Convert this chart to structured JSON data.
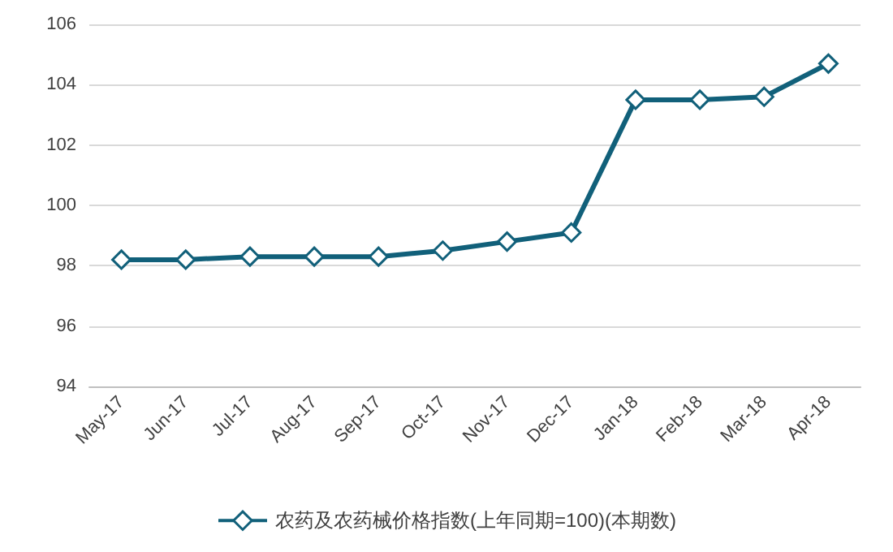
{
  "chart_data": {
    "type": "line",
    "categories": [
      "May-17",
      "Jun-17",
      "Jul-17",
      "Aug-17",
      "Sep-17",
      "Oct-17",
      "Nov-17",
      "Dec-17",
      "Jan-18",
      "Feb-18",
      "Mar-18",
      "Apr-18"
    ],
    "series": [
      {
        "name": "农药及农药械价格指数(上年同期=100)(本期数)",
        "color": "#11607a",
        "values": [
          98.2,
          98.2,
          98.3,
          98.3,
          98.3,
          98.5,
          98.8,
          99.1,
          103.5,
          103.5,
          103.6,
          104.7
        ]
      }
    ],
    "ylim": [
      94,
      106
    ],
    "yticks": [
      94,
      96,
      98,
      100,
      102,
      104,
      106
    ],
    "grid": "y",
    "legend": "bottom",
    "marker": "diamond",
    "line_style": "solid"
  }
}
